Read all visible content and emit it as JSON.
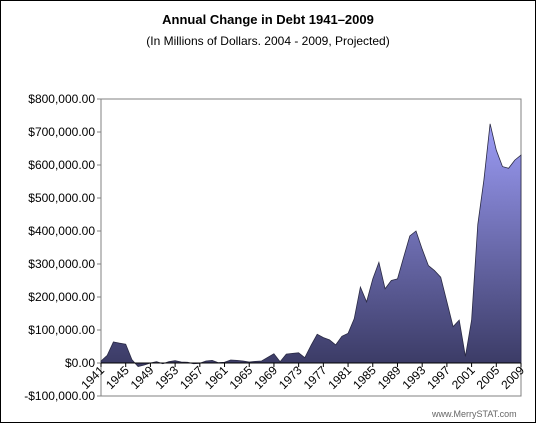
{
  "chart_data": {
    "type": "area",
    "title": "Annual Change in Debt 1941–2009",
    "subtitle": "(In Millions of Dollars. 2004 - 2009, Projected)",
    "xlabel": "",
    "ylabel": "",
    "ylim": [
      -100000,
      800000
    ],
    "y_ticks": [
      800000,
      700000,
      600000,
      500000,
      400000,
      300000,
      200000,
      100000,
      0,
      -100000
    ],
    "y_tick_labels": [
      "$800,000.00",
      "$700,000.00",
      "$600,000.00",
      "$500,000.00",
      "$400,000.00",
      "$300,000.00",
      "$200,000.00",
      "$100,000.00",
      "$0.00",
      "-$100,000.00"
    ],
    "x_tick_labels": [
      "1941",
      "1945",
      "1949",
      "1953",
      "1957",
      "1961",
      "1965",
      "1969",
      "1973",
      "1977",
      "1981",
      "1985",
      "1989",
      "1993",
      "1997",
      "2001",
      "2005",
      "2009"
    ],
    "grid": false,
    "legend": "none",
    "colors": {
      "fill_top": "#9c9cf6",
      "fill_bottom": "#3a3a64",
      "outline": "#2a2a44",
      "plot_border": "#808080"
    },
    "x": [
      1941,
      1942,
      1943,
      1944,
      1945,
      1946,
      1947,
      1948,
      1949,
      1950,
      1951,
      1952,
      1953,
      1954,
      1955,
      1956,
      1957,
      1958,
      1959,
      1960,
      1961,
      1962,
      1963,
      1964,
      1965,
      1966,
      1967,
      1968,
      1969,
      1970,
      1971,
      1972,
      1973,
      1974,
      1975,
      1976,
      1977,
      1978,
      1979,
      1980,
      1981,
      1982,
      1983,
      1984,
      1985,
      1986,
      1987,
      1988,
      1989,
      1990,
      1991,
      1992,
      1993,
      1994,
      1995,
      1996,
      1997,
      1998,
      1999,
      2000,
      2001,
      2002,
      2003,
      2004,
      2005,
      2006,
      2007,
      2008,
      2009
    ],
    "values": [
      6000,
      23000,
      64000,
      60000,
      57000,
      10000,
      -11000,
      -6000,
      0,
      4000,
      -2000,
      4000,
      7000,
      3000,
      2000,
      -2000,
      -1000,
      6000,
      8000,
      1000,
      2000,
      9000,
      8000,
      6000,
      3000,
      5000,
      6000,
      17000,
      28000,
      4000,
      27000,
      29000,
      31000,
      16000,
      53000,
      87000,
      77000,
      70000,
      55000,
      81000,
      90000,
      134000,
      230000,
      185000,
      255000,
      305000,
      225000,
      250000,
      255000,
      320000,
      385000,
      400000,
      345000,
      295000,
      280000,
      260000,
      185000,
      110000,
      130000,
      20000,
      130000,
      420000,
      555000,
      725000,
      645000,
      595000,
      590000,
      615000,
      630000
    ]
  },
  "watermark": "www.MerrySTAT.com"
}
